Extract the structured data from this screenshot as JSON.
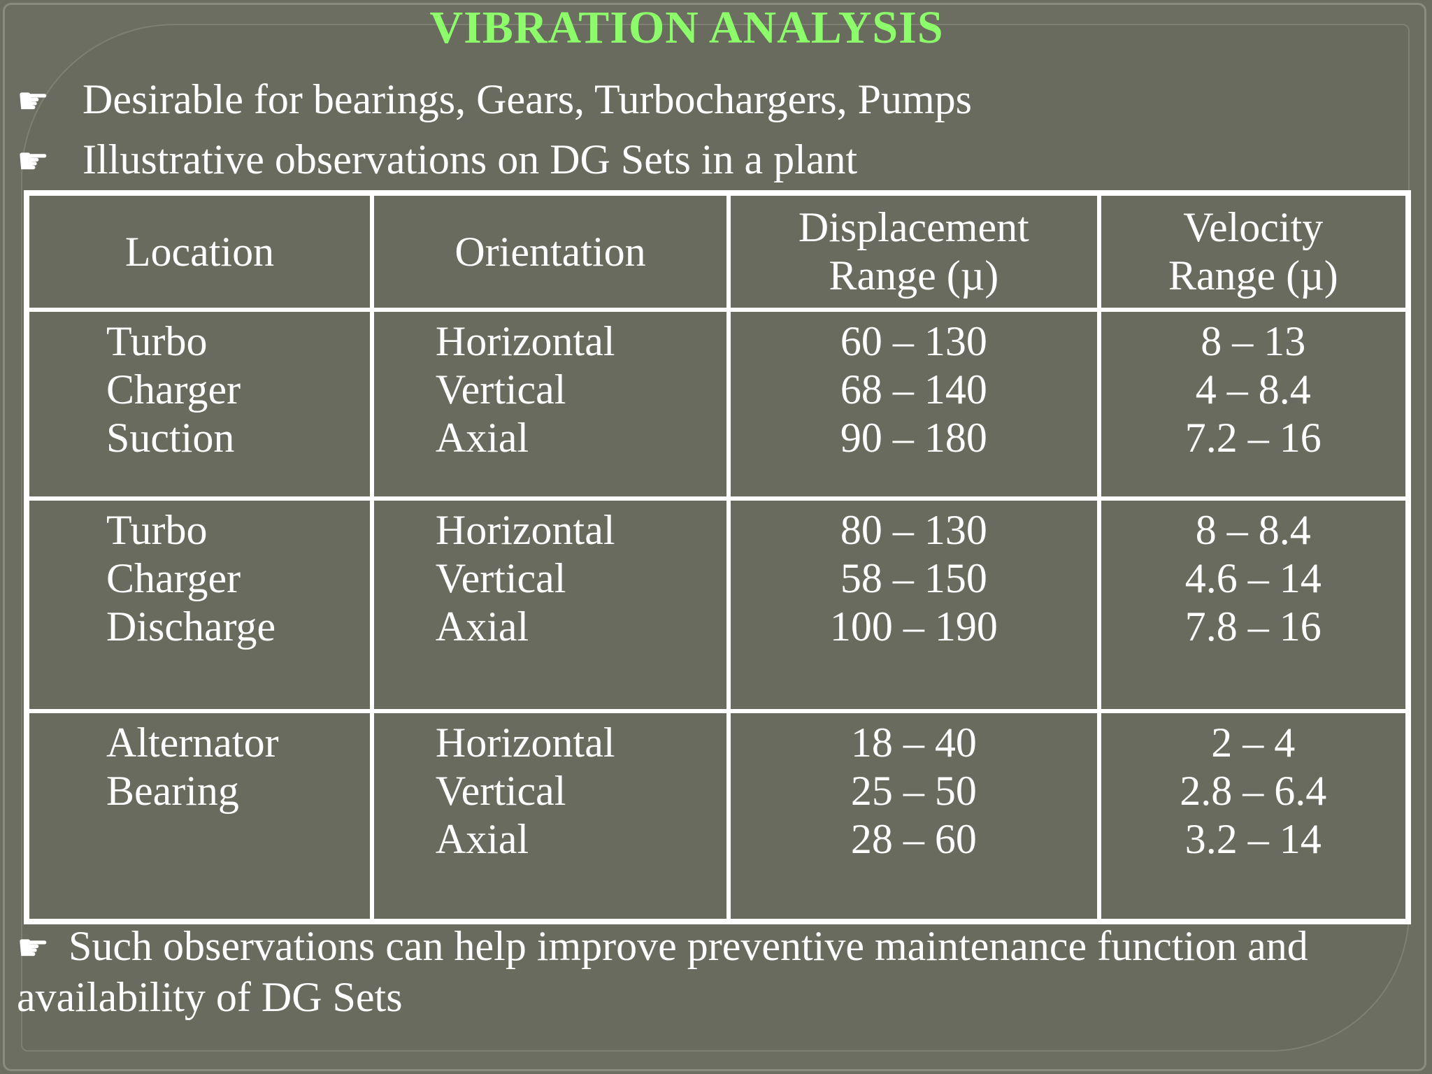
{
  "slide": {
    "title": "VIBRATION ANALYSIS",
    "bullets": [
      "Desirable for  bearings, Gears, Turbochargers, Pumps",
      "Illustrative observations on DG Sets in a plant"
    ],
    "footer_bullet": "Such observations can help improve preventive maintenance function and  availability of DG Sets",
    "bullet_icon": "pointing-hand-icon",
    "title_color": "#8dfc6a",
    "background_color": "#6b6e60"
  },
  "table": {
    "headers": {
      "location": "Location",
      "orientation": "Orientation",
      "displacement_1": "Displacement",
      "displacement_2": "Range (µ)",
      "velocity_1": "Velocity",
      "velocity_2": "Range (µ)"
    },
    "rows": [
      {
        "location": [
          "Turbo",
          "Charger",
          "Suction"
        ],
        "orientation": [
          "Horizontal",
          "Vertical",
          "Axial"
        ],
        "displacement": [
          "60 – 130",
          "68 – 140",
          "90 – 180"
        ],
        "velocity": [
          "8 – 13",
          "4 – 8.4",
          "7.2 – 16"
        ]
      },
      {
        "location": [
          "Turbo",
          "Charger",
          "Discharge"
        ],
        "orientation": [
          "Horizontal",
          "Vertical",
          "Axial"
        ],
        "displacement": [
          "80 – 130",
          "58 – 150",
          "100 – 190"
        ],
        "velocity": [
          "8 – 8.4",
          "4.6 – 14",
          "7.8 – 16"
        ]
      },
      {
        "location": [
          "Alternator",
          "Bearing"
        ],
        "orientation": [
          "Horizontal",
          "Vertical",
          "Axial"
        ],
        "displacement": [
          "18 – 40",
          "25 – 50",
          "28 – 60"
        ],
        "velocity": [
          "2 – 4",
          "2.8 – 6.4",
          "3.2 – 14"
        ]
      }
    ]
  }
}
